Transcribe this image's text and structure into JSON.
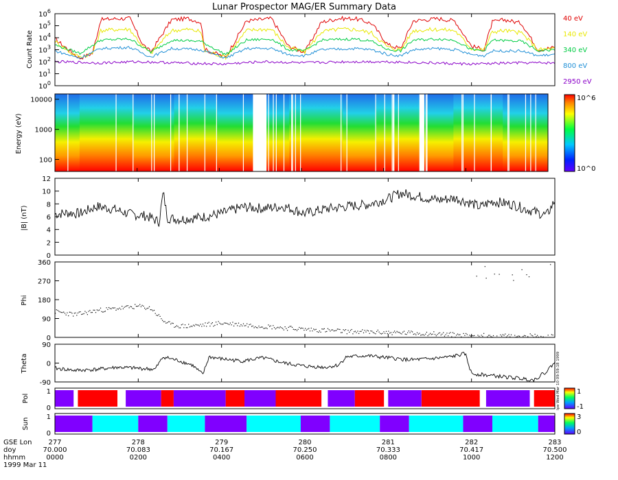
{
  "title": "Lunar Prospector MAG/ER Summary Data",
  "footer": {
    "row_labels": [
      "GSE Lon",
      "doy",
      "hhmm",
      "1999 Mar 11"
    ],
    "ticks": [
      {
        "lon": "277",
        "doy": "70.000",
        "hhmm": "0000"
      },
      {
        "lon": "278",
        "doy": "70.083",
        "hhmm": "0200"
      },
      {
        "lon": "279",
        "doy": "70.167",
        "hhmm": "0400"
      },
      {
        "lon": "280",
        "doy": "70.250",
        "hhmm": "0600"
      },
      {
        "lon": "281",
        "doy": "70.333",
        "hhmm": "0800"
      },
      {
        "lon": "282",
        "doy": "70.417",
        "hhmm": "1000"
      },
      {
        "lon": "283",
        "doy": "70.500",
        "hhmm": "1200"
      }
    ]
  },
  "colors": {
    "line_40eV": "#e00000",
    "line_140eV": "#e8e800",
    "line_340eV": "#00cc44",
    "line_800eV": "#1f8fd6",
    "line_2950eV": "#8a00c8",
    "pol_pos": "#ff0000",
    "pol_neg": "#8000ff",
    "sun_dark": "#8000ff",
    "sun_light": "#00ffff",
    "gap": "#ffffff"
  },
  "chart_data": [
    {
      "type": "line",
      "title": "Lunar Prospector MAG/ER Summary Data",
      "ylabel": "Count Rate",
      "yscale": "log",
      "ylim": [
        1,
        1000000
      ],
      "yticks": [
        "10^0",
        "10^1",
        "10^2",
        "10^3",
        "10^4",
        "10^5",
        "10^6"
      ],
      "x_range_hours": [
        0,
        12
      ],
      "series": [
        {
          "name": "40 eV",
          "color": "#e00000",
          "x": [
            0,
            0.4,
            0.6,
            0.9,
            1.1,
            1.5,
            1.8,
            2.1,
            2.3,
            2.8,
            3.2,
            3.5,
            3.6,
            4.1,
            4.6,
            4.9,
            5.2,
            5.6,
            6,
            6.4,
            6.8,
            7.2,
            7.6,
            8.0,
            8.3,
            8.6,
            9.2,
            9.6,
            10.0,
            10.3,
            10.5,
            10.8,
            11.2,
            11.6,
            12
          ],
          "log_values": [
            3.9,
            2.8,
            2.3,
            2.7,
            5.5,
            5.6,
            5.6,
            3.5,
            2.8,
            5.5,
            5.6,
            5.3,
            3.0,
            2.4,
            5.4,
            5.5,
            5.6,
            3.3,
            2.8,
            5.3,
            5.6,
            5.6,
            5.2,
            3.4,
            3.1,
            5.4,
            5.6,
            5.4,
            3.3,
            3.0,
            5.3,
            5.5,
            5.2,
            3.0,
            3.2
          ]
        },
        {
          "name": "140 eV",
          "color": "#e8e800",
          "x": [
            0,
            0.4,
            0.6,
            0.9,
            1.1,
            1.5,
            1.8,
            2.1,
            2.3,
            2.8,
            3.2,
            3.5,
            3.6,
            4.1,
            4.6,
            4.9,
            5.2,
            5.6,
            6,
            6.4,
            6.8,
            7.2,
            7.6,
            8.0,
            8.3,
            8.6,
            9.2,
            9.6,
            10.0,
            10.3,
            10.5,
            10.8,
            11.2,
            11.6,
            12
          ],
          "log_values": [
            3.7,
            2.7,
            2.4,
            2.7,
            4.6,
            4.7,
            4.7,
            3.3,
            2.7,
            4.6,
            4.7,
            4.5,
            2.9,
            2.4,
            4.6,
            4.7,
            4.7,
            3.2,
            2.8,
            4.5,
            4.7,
            4.7,
            4.4,
            3.2,
            3.0,
            4.6,
            4.7,
            4.6,
            3.1,
            3.0,
            4.5,
            4.6,
            4.4,
            3.0,
            3.1
          ]
        },
        {
          "name": "340 eV",
          "color": "#00cc44",
          "x": [
            0,
            0.6,
            1.1,
            1.8,
            2.3,
            2.8,
            3.5,
            4.1,
            4.6,
            5.2,
            5.6,
            6,
            6.4,
            7.2,
            7.6,
            8.0,
            8.3,
            8.6,
            9.2,
            9.6,
            10.0,
            10.3,
            10.5,
            11.2,
            11.6,
            12
          ],
          "log_values": [
            3.4,
            2.7,
            3.8,
            3.9,
            2.8,
            3.8,
            3.7,
            2.6,
            3.8,
            3.9,
            3.0,
            2.9,
            3.8,
            3.9,
            3.7,
            3.0,
            2.9,
            3.8,
            3.9,
            3.8,
            3.0,
            2.9,
            3.8,
            3.7,
            2.9,
            3.0
          ]
        },
        {
          "name": "800 eV",
          "color": "#1f8fd6",
          "x": [
            0,
            0.6,
            1.1,
            1.8,
            2.3,
            2.8,
            3.5,
            4.1,
            4.6,
            5.2,
            5.6,
            6,
            6.4,
            7.2,
            7.6,
            8.0,
            8.3,
            8.6,
            9.2,
            9.6,
            10.0,
            10.3,
            10.5,
            11.2,
            11.6,
            12
          ],
          "log_values": [
            2.9,
            2.3,
            3.1,
            3.2,
            2.4,
            3.1,
            3.0,
            2.3,
            3.1,
            3.1,
            2.6,
            2.5,
            3.0,
            3.1,
            3.0,
            2.6,
            2.5,
            3.0,
            3.1,
            3.0,
            2.6,
            2.5,
            2.9,
            2.9,
            2.5,
            2.6
          ]
        },
        {
          "name": "2950 eV",
          "color": "#8a00c8",
          "x": [
            0,
            1,
            2,
            3,
            4,
            5,
            6,
            7,
            8,
            9,
            10,
            11,
            12
          ],
          "log_values": [
            2.0,
            1.9,
            2.0,
            1.9,
            1.8,
            2.0,
            1.9,
            2.0,
            2.0,
            1.9,
            1.8,
            1.9,
            1.9
          ]
        }
      ]
    },
    {
      "type": "heatmap",
      "ylabel": "Energy (eV)",
      "yscale": "log",
      "ylim": [
        40,
        15000
      ],
      "yticks": [
        "100",
        "1000",
        "10000"
      ],
      "colorbar_min": "10^0",
      "colorbar_max": "10^6",
      "x_range_hours": [
        0,
        12
      ],
      "data_gaps_hours": [
        [
          4.82,
          5.15
        ],
        [
          8.87,
          8.99
        ]
      ],
      "sheath_intervals_hours": [
        [
          0.6,
          1.9
        ],
        [
          2.9,
          3.95
        ],
        [
          5.7,
          7.0
        ],
        [
          7.8,
          8.95
        ],
        [
          9.7,
          10.9
        ]
      ]
    },
    {
      "type": "line",
      "ylabel": "|B| (nT)",
      "ylim": [
        0,
        12
      ],
      "yticks": [
        "0",
        "2",
        "4",
        "6",
        "8",
        "10",
        "12"
      ],
      "x_range_hours": [
        0,
        12
      ],
      "series": [
        {
          "name": "|B|",
          "x": [
            0,
            0.3,
            0.6,
            1.0,
            1.4,
            1.8,
            2.2,
            2.5,
            2.6,
            2.7,
            3.0,
            3.5,
            4.0,
            4.5,
            5.0,
            5.5,
            6.0,
            6.5,
            7.0,
            7.5,
            8.0,
            8.3,
            8.7,
            9.2,
            9.6,
            10.0,
            10.2,
            10.5,
            11.0,
            11.3,
            11.6,
            11.8,
            12
          ],
          "values": [
            6.4,
            6.6,
            6.5,
            7.6,
            7.2,
            6.4,
            6.1,
            5.2,
            9.8,
            5.8,
            5.6,
            5.9,
            6.5,
            7.5,
            7.3,
            7.6,
            6.5,
            7.2,
            7.6,
            7.9,
            8.8,
            9.7,
            9.2,
            8.6,
            8.9,
            8.1,
            7.5,
            8.4,
            7.9,
            7.2,
            6.6,
            6.2,
            8.5
          ]
        }
      ]
    },
    {
      "type": "scatter",
      "ylabel": "Phi",
      "ylim": [
        0,
        360
      ],
      "yticks": [
        "0",
        "90",
        "180",
        "270",
        "360"
      ],
      "x_range_hours": [
        0,
        12
      ],
      "series": [
        {
          "name": "Phi",
          "x": [
            0,
            0.5,
            1.0,
            1.5,
            2.0,
            2.3,
            2.6,
            2.8,
            3.1,
            3.5,
            4.0,
            4.5,
            5.0,
            5.5,
            6.0,
            6.5,
            7.0,
            7.5,
            8.0,
            8.5,
            9.0,
            9.5,
            10.0,
            10.1,
            10.2,
            10.6,
            11.0,
            11.3,
            11.6,
            11.8,
            12
          ],
          "values": [
            125,
            110,
            130,
            140,
            150,
            140,
            80,
            60,
            55,
            60,
            70,
            65,
            55,
            45,
            40,
            35,
            30,
            28,
            25,
            22,
            20,
            15,
            10,
            350,
            300,
            5,
            15,
            350,
            40,
            5,
            10
          ]
        }
      ]
    },
    {
      "type": "line",
      "ylabel": "Theta",
      "ylim": [
        -90,
        90
      ],
      "yticks": [
        "-90",
        "0",
        "90"
      ],
      "x_range_hours": [
        0,
        12
      ],
      "series": [
        {
          "name": "Theta",
          "x": [
            0,
            0.5,
            1.0,
            1.5,
            2.0,
            2.4,
            2.6,
            3.0,
            3.3,
            3.55,
            3.7,
            4.0,
            4.5,
            5.0,
            5.5,
            6.0,
            6.5,
            6.8,
            7.0,
            7.5,
            8.0,
            8.5,
            9.0,
            9.5,
            9.85,
            10.0,
            10.5,
            11.0,
            11.5,
            11.8,
            12
          ],
          "values": [
            -25,
            -35,
            -30,
            -20,
            -25,
            -30,
            30,
            10,
            -10,
            -55,
            30,
            20,
            10,
            25,
            0,
            -15,
            -20,
            -10,
            30,
            35,
            25,
            15,
            20,
            30,
            45,
            -50,
            -60,
            -70,
            -80,
            -40,
            5
          ]
        }
      ]
    },
    {
      "type": "heatmap",
      "ylabel": "Pol",
      "colorbar_max": "1",
      "colorbar_min": "-1",
      "stamp": "lpe Wed Mar 10 09:59:18 1999",
      "segments": [
        {
          "start": 0.0,
          "end": 0.45,
          "value": "neg"
        },
        {
          "start": 0.45,
          "end": 0.55,
          "value": "gap"
        },
        {
          "start": 0.55,
          "end": 1.5,
          "value": "pos"
        },
        {
          "start": 1.5,
          "end": 1.7,
          "value": "gap"
        },
        {
          "start": 1.7,
          "end": 2.55,
          "value": "neg"
        },
        {
          "start": 2.55,
          "end": 2.85,
          "value": "pos"
        },
        {
          "start": 2.85,
          "end": 3.0,
          "value": "neg"
        },
        {
          "start": 3.0,
          "end": 4.1,
          "value": "neg"
        },
        {
          "start": 4.1,
          "end": 4.55,
          "value": "pos"
        },
        {
          "start": 4.55,
          "end": 5.3,
          "value": "neg"
        },
        {
          "start": 5.3,
          "end": 6.4,
          "value": "pos"
        },
        {
          "start": 6.4,
          "end": 6.55,
          "value": "gap"
        },
        {
          "start": 6.55,
          "end": 7.2,
          "value": "neg"
        },
        {
          "start": 7.2,
          "end": 7.9,
          "value": "pos"
        },
        {
          "start": 7.9,
          "end": 8.0,
          "value": "gap"
        },
        {
          "start": 8.0,
          "end": 8.8,
          "value": "neg"
        },
        {
          "start": 8.8,
          "end": 10.2,
          "value": "pos"
        },
        {
          "start": 10.2,
          "end": 10.35,
          "value": "gap"
        },
        {
          "start": 10.35,
          "end": 11.4,
          "value": "neg"
        },
        {
          "start": 11.4,
          "end": 11.5,
          "value": "gap"
        },
        {
          "start": 11.5,
          "end": 12.0,
          "value": "pos"
        }
      ]
    },
    {
      "type": "heatmap",
      "ylabel": "Sun",
      "colorbar_max": "3",
      "colorbar_min": "0",
      "segments": [
        {
          "start": 0.0,
          "end": 0.9,
          "value": "dark"
        },
        {
          "start": 0.9,
          "end": 2.0,
          "value": "light"
        },
        {
          "start": 2.0,
          "end": 2.7,
          "value": "dark"
        },
        {
          "start": 2.7,
          "end": 3.6,
          "value": "light"
        },
        {
          "start": 3.6,
          "end": 4.6,
          "value": "dark"
        },
        {
          "start": 4.6,
          "end": 5.9,
          "value": "light"
        },
        {
          "start": 5.9,
          "end": 6.6,
          "value": "dark"
        },
        {
          "start": 6.6,
          "end": 7.8,
          "value": "light"
        },
        {
          "start": 7.8,
          "end": 8.5,
          "value": "dark"
        },
        {
          "start": 8.5,
          "end": 9.8,
          "value": "light"
        },
        {
          "start": 9.8,
          "end": 10.5,
          "value": "dark"
        },
        {
          "start": 10.5,
          "end": 11.6,
          "value": "light"
        },
        {
          "start": 11.6,
          "end": 12.0,
          "value": "dark"
        }
      ]
    }
  ]
}
